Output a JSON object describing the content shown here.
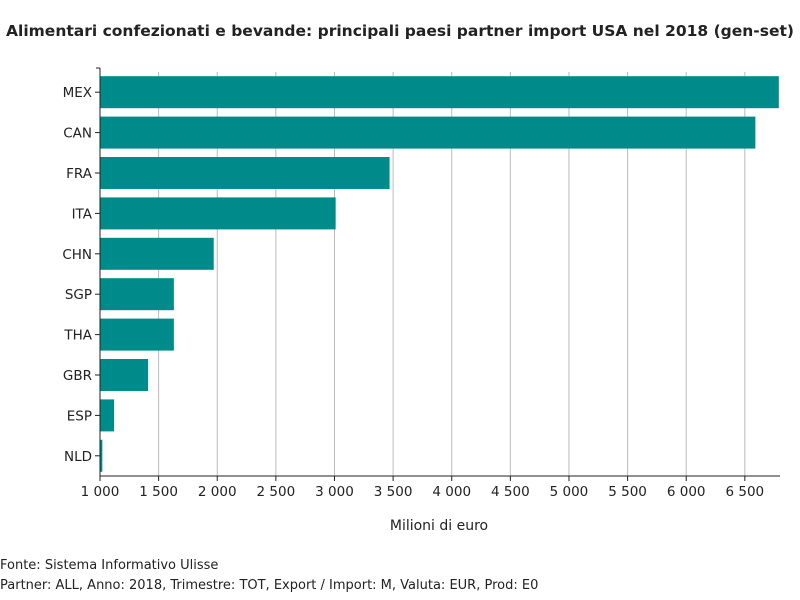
{
  "chart_data": {
    "type": "bar",
    "orientation": "horizontal",
    "title": "Alimentari confezionati e bevande: principali paesi partner import USA nel 2018 (gen-set)",
    "xlabel": "Milioni di euro",
    "ylabel": "",
    "categories": [
      "MEX",
      "CAN",
      "FRA",
      "ITA",
      "CHN",
      "SGP",
      "THA",
      "GBR",
      "ESP",
      "NLD"
    ],
    "values": [
      6790,
      6590,
      3470,
      3010,
      1970,
      1630,
      1630,
      1410,
      1120,
      1020
    ],
    "xlim": [
      1000,
      6800
    ],
    "xticks": [
      1000,
      1500,
      2000,
      2500,
      3000,
      3500,
      4000,
      4500,
      5000,
      5500,
      6000,
      6500
    ],
    "xtick_labels": [
      "1 000",
      "1 500",
      "2 000",
      "2 500",
      "3 000",
      "3 500",
      "4 000",
      "4 500",
      "5 000",
      "5 500",
      "6 000",
      "6 500"
    ],
    "grid": "vertical",
    "bar_color": "#008b8b"
  },
  "footer": {
    "source": "Fonte: Sistema Informativo Ulisse",
    "params": "Partner: ALL, Anno: 2018, Trimestre: TOT, Export / Import: M, Valuta: EUR, Prod: E0"
  }
}
